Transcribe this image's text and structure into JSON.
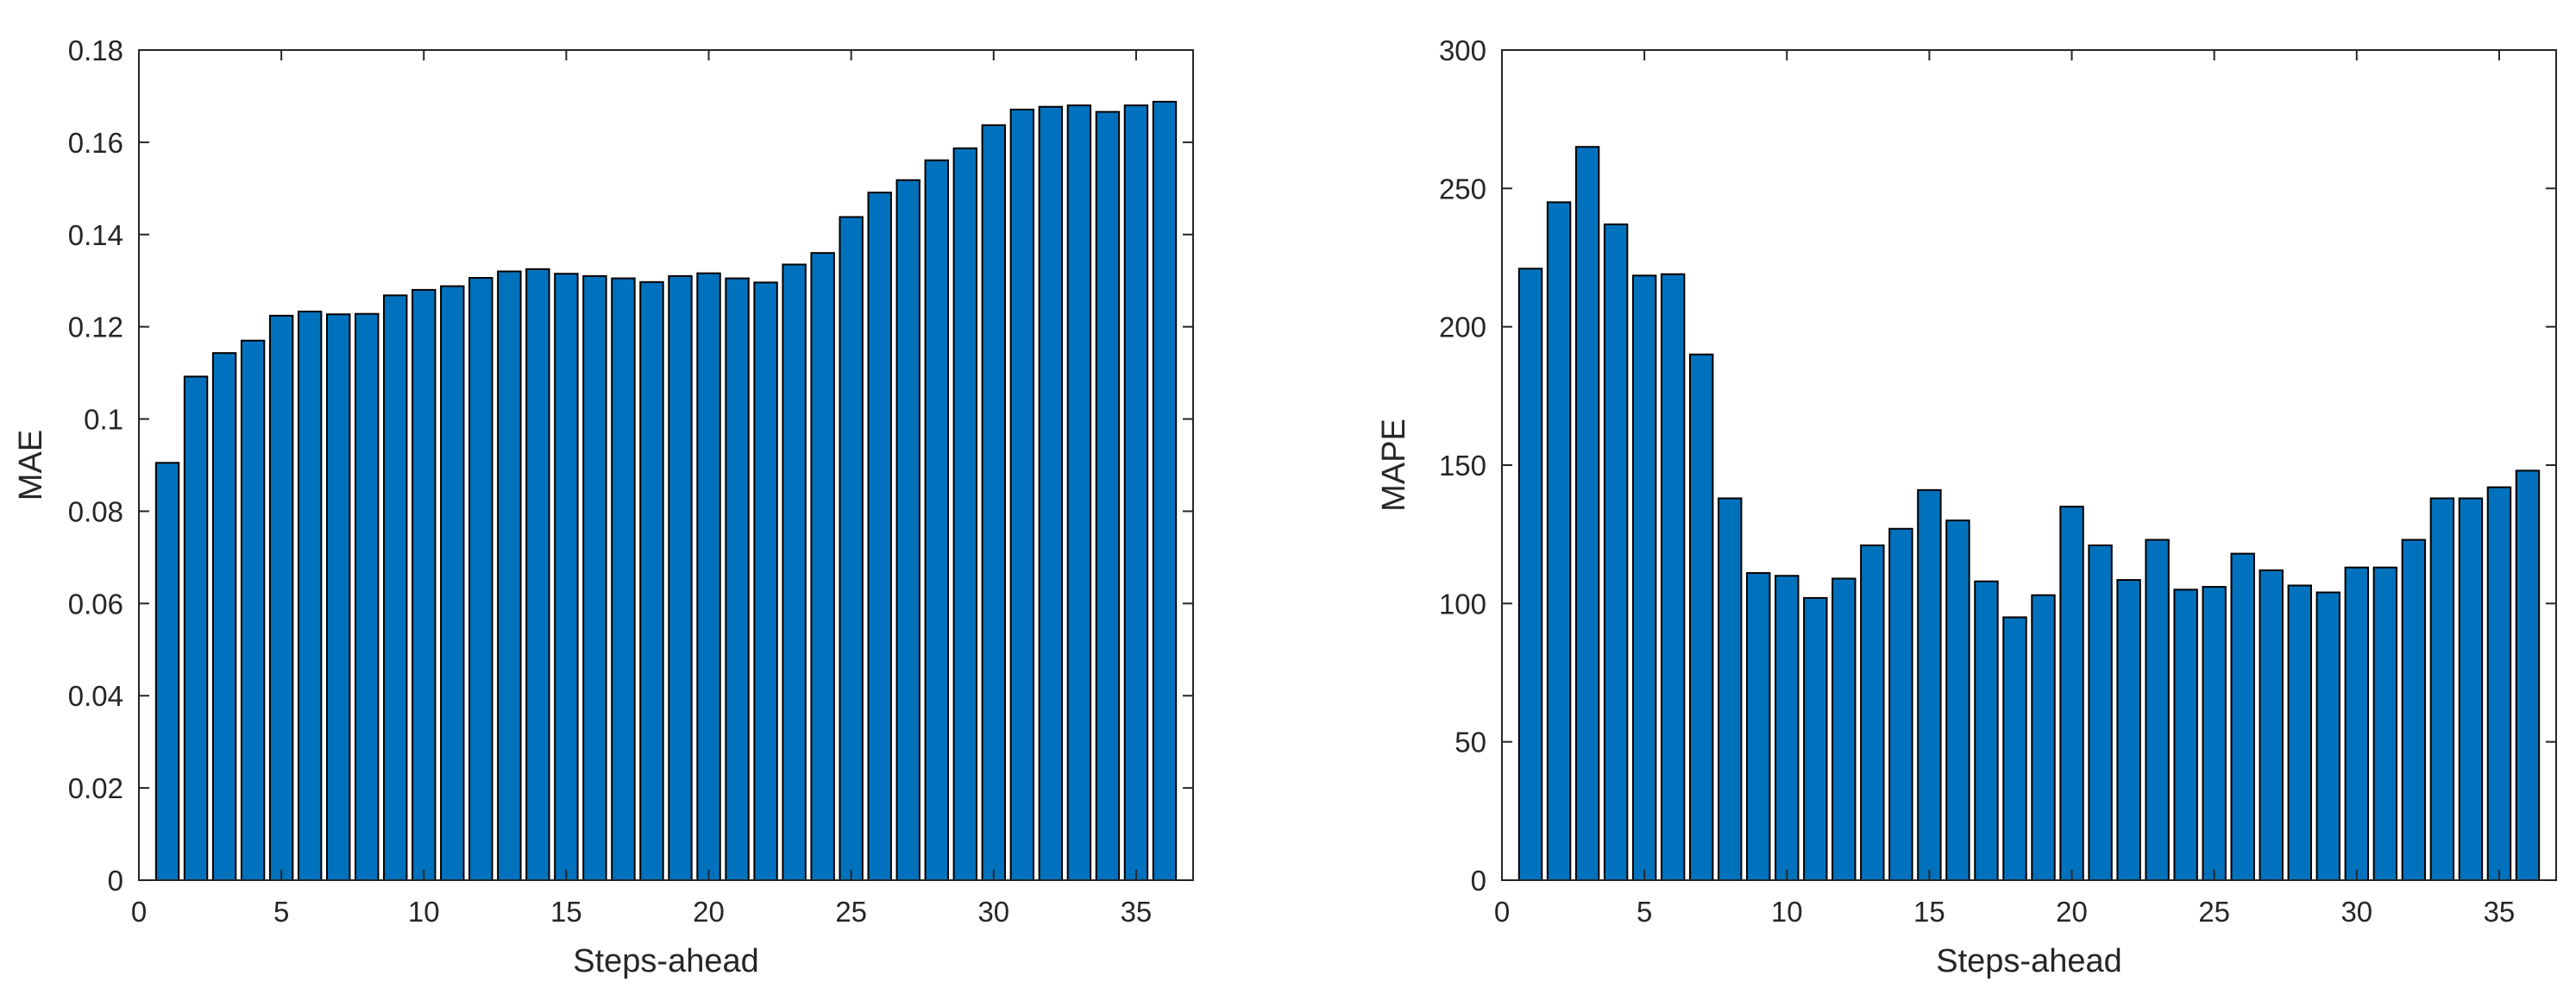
{
  "chart_data": [
    {
      "type": "bar",
      "xlabel": "Steps-ahead",
      "ylabel": "MAE",
      "ylim": [
        0,
        0.18
      ],
      "yticks": [
        0,
        0.02,
        0.04,
        0.06,
        0.08,
        0.1,
        0.12,
        0.14,
        0.16,
        0.18
      ],
      "ytick_labels": [
        "0",
        "0.02",
        "0.04",
        "0.06",
        "0.08",
        "0.1",
        "0.12",
        "0.14",
        "0.16",
        "0.18"
      ],
      "xlim": [
        0,
        37
      ],
      "xticks": [
        0,
        5,
        10,
        15,
        20,
        25,
        30,
        35
      ],
      "xtick_labels": [
        "0",
        "5",
        "10",
        "15",
        "20",
        "25",
        "30",
        "35"
      ],
      "box": true,
      "grid": false,
      "bar_color": "#0072BD",
      "x": [
        1,
        2,
        3,
        4,
        5,
        6,
        7,
        8,
        9,
        10,
        11,
        12,
        13,
        14,
        15,
        16,
        17,
        18,
        19,
        20,
        21,
        22,
        23,
        24,
        25,
        26,
        27,
        28,
        29,
        30,
        31,
        32,
        33,
        34,
        35,
        36
      ],
      "values": [
        0.0905,
        0.1092,
        0.1143,
        0.117,
        0.1224,
        0.1233,
        0.1227,
        0.1228,
        0.1268,
        0.128,
        0.1288,
        0.1306,
        0.132,
        0.1325,
        0.1315,
        0.131,
        0.1305,
        0.1297,
        0.131,
        0.1316,
        0.1305,
        0.1296,
        0.1335,
        0.136,
        0.1438,
        0.1491,
        0.1518,
        0.1561,
        0.1587,
        0.1637,
        0.1671,
        0.1677,
        0.168,
        0.1666,
        0.168,
        0.1688
      ]
    },
    {
      "type": "bar",
      "xlabel": "Steps-ahead",
      "ylabel": "MAPE",
      "ylim": [
        0,
        300
      ],
      "yticks": [
        0,
        50,
        100,
        150,
        200,
        250,
        300
      ],
      "ytick_labels": [
        "0",
        "50",
        "100",
        "150",
        "200",
        "250",
        "300"
      ],
      "xlim": [
        0,
        37
      ],
      "xticks": [
        0,
        5,
        10,
        15,
        20,
        25,
        30,
        35
      ],
      "xtick_labels": [
        "0",
        "5",
        "10",
        "15",
        "20",
        "25",
        "30",
        "35"
      ],
      "box": true,
      "grid": false,
      "bar_color": "#0072BD",
      "x": [
        1,
        2,
        3,
        4,
        5,
        6,
        7,
        8,
        9,
        10,
        11,
        12,
        13,
        14,
        15,
        16,
        17,
        18,
        19,
        20,
        21,
        22,
        23,
        24,
        25,
        26,
        27,
        28,
        29,
        30,
        31,
        32,
        33,
        34,
        35,
        36
      ],
      "values": [
        221,
        245,
        265,
        237,
        218.5,
        219,
        190,
        138,
        111,
        110,
        102,
        109,
        121,
        127,
        141,
        130,
        108,
        95,
        103,
        135,
        121,
        108.5,
        123,
        105,
        106,
        118,
        112,
        106.5,
        104,
        113,
        113,
        123,
        138,
        138,
        142,
        148
      ]
    }
  ]
}
